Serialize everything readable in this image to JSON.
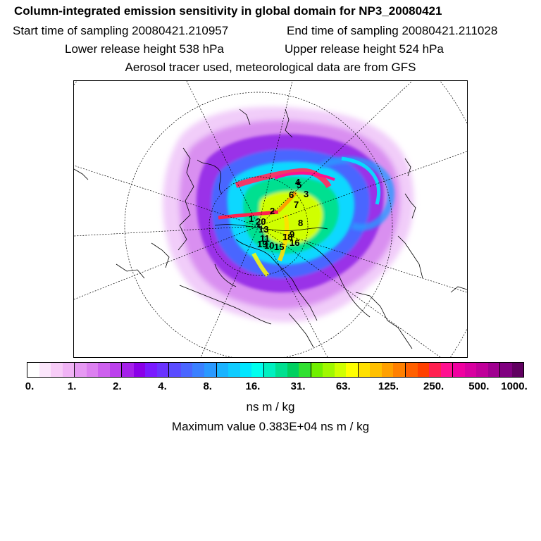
{
  "title": "Column-integrated emission sensitivity in global domain for NP3_20080421",
  "header": {
    "start_time": "Start time of sampling 20080421.210957",
    "end_time": "End time of sampling 20080421.211028",
    "lower_height": "Lower release height  538 hPa",
    "upper_height": "Upper release height  524 hPa",
    "tracer_note": "Aerosol tracer used, meteorological data are from GFS"
  },
  "map": {
    "projection": "north-polar-stereographic",
    "release_labels": [
      {
        "text": "4"
      },
      {
        "text": "5"
      },
      {
        "text": "6"
      },
      {
        "text": "3"
      },
      {
        "text": "7"
      },
      {
        "text": "1"
      },
      {
        "text": "2"
      },
      {
        "text": "20"
      },
      {
        "text": "8"
      },
      {
        "text": "13"
      },
      {
        "text": "11"
      },
      {
        "text": "19"
      },
      {
        "text": "10"
      },
      {
        "text": "9"
      },
      {
        "text": "18"
      },
      {
        "text": "16"
      },
      {
        "text": "15"
      }
    ]
  },
  "legend": {
    "colors": [
      "#ffffff",
      "#fbe6fb",
      "#f7ccf7",
      "#f0b3f5",
      "#e699f3",
      "#dc80f0",
      "#cd60ee",
      "#bb40ec",
      "#a520ea",
      "#8a00e8",
      "#7a1aff",
      "#6a33ff",
      "#5a4cff",
      "#4a66ff",
      "#3a80ff",
      "#2a99ff",
      "#1ab3ff",
      "#10ccff",
      "#00e6ff",
      "#00ffee",
      "#00f0c0",
      "#00e090",
      "#00d060",
      "#30e030",
      "#70f000",
      "#a0f800",
      "#d0ff00",
      "#ffff00",
      "#ffe000",
      "#ffc000",
      "#ffa000",
      "#ff8000",
      "#ff6000",
      "#ff4000",
      "#ff2050",
      "#ff1090",
      "#f000a0",
      "#d800a0",
      "#c0009a",
      "#a00090",
      "#800080",
      "#600060"
    ],
    "tick_labels": [
      "0.",
      "1.",
      "2.",
      "4.",
      "8.",
      "16.",
      "31.",
      "63.",
      "125.",
      "250.",
      "500.",
      "1000."
    ],
    "units": "ns m / kg",
    "max_value": "Maximum value  0.383E+04 ns m / kg"
  }
}
